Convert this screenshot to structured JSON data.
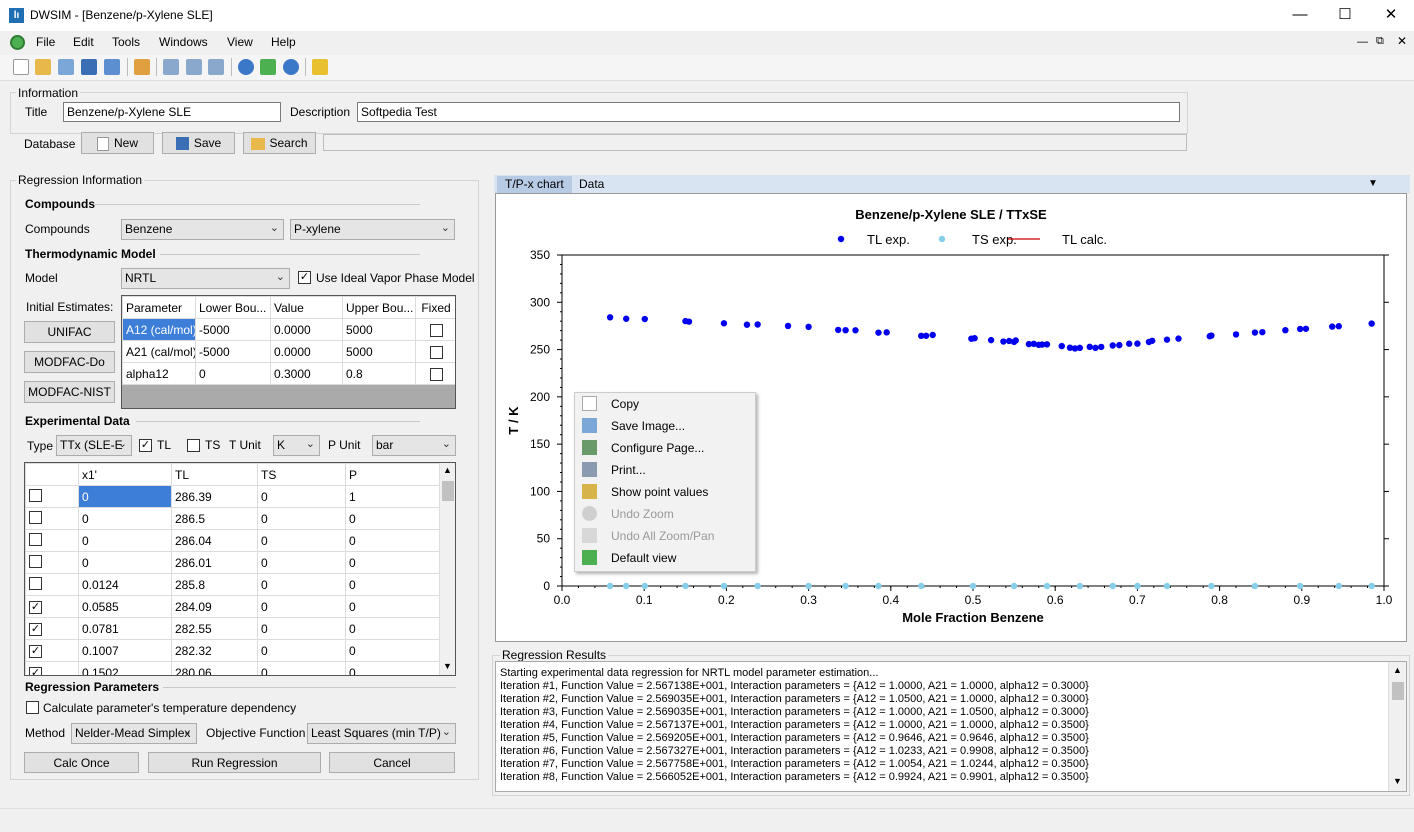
{
  "window": {
    "title": "DWSIM - [Benzene/p-Xylene SLE]",
    "app_icon": "dwsim-logo"
  },
  "menu": [
    "File",
    "Edit",
    "Tools",
    "Windows",
    "View",
    "Help"
  ],
  "information": {
    "group_title": "Information",
    "title_label": "Title",
    "title_value": "Benzene/p-Xylene SLE",
    "description_label": "Description",
    "description_value": "Softpedia Test",
    "database_label": "Database",
    "new_label": "New",
    "save_label": "Save",
    "search_label": "Search"
  },
  "regression": {
    "group_title": "Regression Information",
    "compounds_heading": "Compounds",
    "compounds_label": "Compounds",
    "compound1": "Benzene",
    "compound2": "P-xylene",
    "thermo_heading": "Thermodynamic Model",
    "model_label": "Model",
    "model_value": "NRTL",
    "ideal_vapor_label": "Use Ideal Vapor Phase Model",
    "ideal_vapor_checked": true,
    "initial_estimates_label": "Initial Estimates:",
    "unifac_label": "UNIFAC",
    "modfac_do_label": "MODFAC-Do",
    "modfac_nist_label": "MODFAC-NIST",
    "param_headers": [
      "Parameter",
      "Lower Bou...",
      "Value",
      "Upper Bou...",
      "Fixed"
    ],
    "params": [
      {
        "name": "A12 (cal/mol)",
        "lower": "-5000",
        "value": "0.0000",
        "upper": "5000"
      },
      {
        "name": "A21 (cal/mol)",
        "lower": "-5000",
        "value": "0.0000",
        "upper": "5000"
      },
      {
        "name": "alpha12",
        "lower": "0",
        "value": "0.3000",
        "upper": "0.8"
      }
    ],
    "exp_heading": "Experimental Data",
    "type_label": "Type",
    "type_value": "TTx (SLE-E",
    "tl_label": "TL",
    "tl_checked": true,
    "ts_label": "TS",
    "ts_checked": false,
    "tunit_label": "T Unit",
    "tunit_value": "K",
    "punit_label": "P Unit",
    "punit_value": "bar",
    "exp_headers": [
      "",
      "x1'",
      "TL",
      "TS",
      "P"
    ],
    "exp_rows": [
      {
        "checked": false,
        "x1": "0",
        "tl": "286.39",
        "ts": "0",
        "p": "1"
      },
      {
        "checked": false,
        "x1": "0",
        "tl": "286.5",
        "ts": "0",
        "p": "0"
      },
      {
        "checked": false,
        "x1": "0",
        "tl": "286.04",
        "ts": "0",
        "p": "0"
      },
      {
        "checked": false,
        "x1": "0",
        "tl": "286.01",
        "ts": "0",
        "p": "0"
      },
      {
        "checked": false,
        "x1": "0.0124",
        "tl": "285.8",
        "ts": "0",
        "p": "0"
      },
      {
        "checked": true,
        "x1": "0.0585",
        "tl": "284.09",
        "ts": "0",
        "p": "0"
      },
      {
        "checked": true,
        "x1": "0.0781",
        "tl": "282.55",
        "ts": "0",
        "p": "0"
      },
      {
        "checked": true,
        "x1": "0.1007",
        "tl": "282.32",
        "ts": "0",
        "p": "0"
      },
      {
        "checked": true,
        "x1": "0.1502",
        "tl": "280.06",
        "ts": "0",
        "p": "0"
      }
    ],
    "regparams_heading": "Regression Parameters",
    "calc_temp_dep_label": "Calculate parameter's temperature dependency",
    "method_label": "Method",
    "method_value": "Nelder-Mead Simplex",
    "objective_label": "Objective Function",
    "objective_value": "Least Squares (min T/P)",
    "calc_once_label": "Calc Once",
    "run_regression_label": "Run Regression",
    "cancel_label": "Cancel"
  },
  "chart_tabs": [
    "T/P-x chart",
    "Data"
  ],
  "chart_data": {
    "type": "scatter",
    "title": "Benzene/p-Xylene SLE / TTxSE",
    "xlabel": "Mole Fraction Benzene",
    "ylabel": "T / K",
    "xlim": [
      0,
      1
    ],
    "ylim": [
      0,
      350
    ],
    "xticks": [
      "0.0",
      "0.1",
      "0.2",
      "0.3",
      "0.4",
      "0.5",
      "0.6",
      "0.7",
      "0.8",
      "0.9",
      "1.0"
    ],
    "yticks": [
      "0",
      "50",
      "100",
      "150",
      "200",
      "250",
      "300",
      "350"
    ],
    "legend": "top-center",
    "legend_entries": [
      "TL exp.",
      "TS exp.",
      "TL calc."
    ],
    "series": [
      {
        "name": "TL exp.",
        "color": "#0000ee",
        "points": [
          [
            0.0585,
            284.1
          ],
          [
            0.0781,
            282.6
          ],
          [
            0.1007,
            282.3
          ],
          [
            0.1502,
            280.1
          ],
          [
            0.1545,
            279.5
          ],
          [
            0.197,
            277.8
          ],
          [
            0.225,
            276.3
          ],
          [
            0.238,
            276.5
          ],
          [
            0.275,
            275.0
          ],
          [
            0.3,
            274.0
          ],
          [
            0.336,
            270.8
          ],
          [
            0.345,
            270.5
          ],
          [
            0.357,
            270.4
          ],
          [
            0.385,
            267.9
          ],
          [
            0.395,
            268.2
          ],
          [
            0.437,
            264.5
          ],
          [
            0.443,
            264.6
          ],
          [
            0.451,
            265.4
          ],
          [
            0.498,
            261.5
          ],
          [
            0.502,
            262.0
          ],
          [
            0.522,
            260.0
          ],
          [
            0.537,
            258.5
          ],
          [
            0.544,
            259.1
          ],
          [
            0.55,
            258.2
          ],
          [
            0.552,
            259.6
          ],
          [
            0.568,
            255.8
          ],
          [
            0.574,
            256.1
          ],
          [
            0.58,
            255.0
          ],
          [
            0.584,
            255.3
          ],
          [
            0.59,
            255.5
          ],
          [
            0.608,
            253.7
          ],
          [
            0.618,
            252.0
          ],
          [
            0.624,
            251.2
          ],
          [
            0.63,
            251.8
          ],
          [
            0.642,
            252.9
          ],
          [
            0.649,
            251.8
          ],
          [
            0.656,
            252.8
          ],
          [
            0.67,
            254.3
          ],
          [
            0.678,
            254.7
          ],
          [
            0.69,
            256.2
          ],
          [
            0.7,
            256.3
          ],
          [
            0.714,
            258.0
          ],
          [
            0.718,
            259.3
          ],
          [
            0.736,
            260.5
          ],
          [
            0.75,
            261.6
          ],
          [
            0.788,
            264.1
          ],
          [
            0.79,
            264.8
          ],
          [
            0.82,
            266.0
          ],
          [
            0.843,
            268.0
          ],
          [
            0.852,
            268.4
          ],
          [
            0.88,
            270.5
          ],
          [
            0.898,
            271.8
          ],
          [
            0.905,
            272.0
          ],
          [
            0.937,
            274.3
          ],
          [
            0.945,
            274.7
          ],
          [
            0.985,
            277.5
          ]
        ]
      },
      {
        "name": "TS exp.",
        "color": "#87ceeb",
        "points": [
          [
            0.0585,
            0
          ],
          [
            0.0781,
            0
          ],
          [
            0.1007,
            0
          ],
          [
            0.1502,
            0
          ],
          [
            0.197,
            0
          ],
          [
            0.238,
            0
          ],
          [
            0.3,
            0
          ],
          [
            0.345,
            0
          ],
          [
            0.385,
            0
          ],
          [
            0.437,
            0
          ],
          [
            0.5,
            0
          ],
          [
            0.55,
            0
          ],
          [
            0.59,
            0
          ],
          [
            0.63,
            0
          ],
          [
            0.67,
            0
          ],
          [
            0.7,
            0
          ],
          [
            0.736,
            0
          ],
          [
            0.79,
            0
          ],
          [
            0.843,
            0
          ],
          [
            0.898,
            0
          ],
          [
            0.945,
            0
          ],
          [
            0.985,
            0
          ]
        ]
      },
      {
        "name": "TL calc.",
        "color": "#cc0000",
        "points": []
      }
    ]
  },
  "context_menu": [
    {
      "label": "Copy",
      "enabled": true,
      "icon": "copy-icon"
    },
    {
      "label": "Save Image...",
      "enabled": true,
      "icon": "save-image-icon"
    },
    {
      "label": "Configure Page...",
      "enabled": true,
      "icon": "configure-page-icon"
    },
    {
      "label": "Print...",
      "enabled": true,
      "icon": "print-icon"
    },
    {
      "label": "Show point values",
      "enabled": true,
      "icon": "show-point-values-icon"
    },
    {
      "label": "Undo Zoom",
      "enabled": false,
      "icon": "undo-zoom-icon"
    },
    {
      "label": "Undo All Zoom/Pan",
      "enabled": false,
      "icon": "undo-all-zoom-icon"
    },
    {
      "label": "Default view",
      "enabled": true,
      "icon": "default-view-icon"
    }
  ],
  "results": {
    "group_title": "Regression Results",
    "lines": [
      "Starting experimental data regression for NRTL model parameter estimation...",
      "Iteration #1, Function Value = 2.567138E+001, Interaction parameters = {A12 = 1.0000, A21 = 1.0000, alpha12 = 0.3000}",
      "Iteration #2, Function Value = 2.569035E+001, Interaction parameters = {A12 = 1.0500, A21 = 1.0000, alpha12 = 0.3000}",
      "Iteration #3, Function Value = 2.569035E+001, Interaction parameters = {A12 = 1.0000, A21 = 1.0500, alpha12 = 0.3000}",
      "Iteration #4, Function Value = 2.567137E+001, Interaction parameters = {A12 = 1.0000, A21 = 1.0000, alpha12 = 0.3500}",
      "Iteration #5, Function Value = 2.569205E+001, Interaction parameters = {A12 = 0.9646, A21 = 0.9646, alpha12 = 0.3500}",
      "Iteration #6, Function Value = 2.567327E+001, Interaction parameters = {A12 = 1.0233, A21 = 0.9908, alpha12 = 0.3500}",
      "Iteration #7, Function Value = 2.567758E+001, Interaction parameters = {A12 = 1.0054, A21 = 1.0244, alpha12 = 0.3500}",
      "Iteration #8, Function Value = 2.566052E+001, Interaction parameters = {A12 = 0.9924, A21 = 0.9901, alpha12 = 0.3500}"
    ]
  }
}
